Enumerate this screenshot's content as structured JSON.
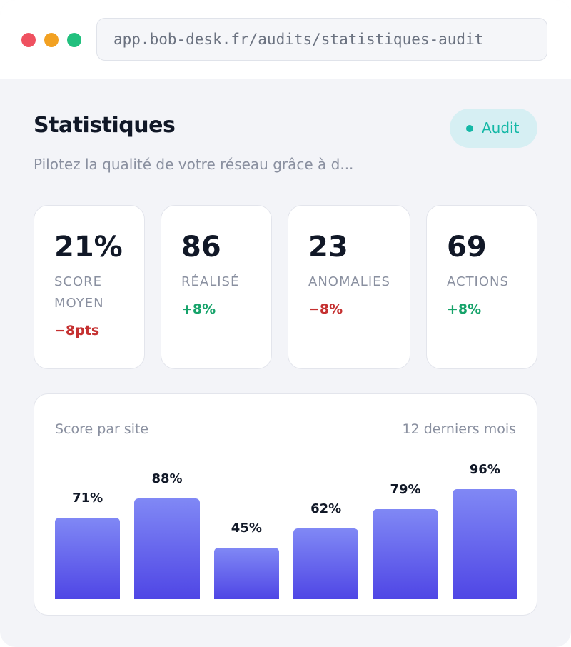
{
  "browser": {
    "url": "app.bob-desk.fr/audits/statistiques-audit"
  },
  "header": {
    "title": "Statistiques",
    "badge": "Audit",
    "subtitle": "Pilotez la qualité de votre réseau grâce à d..."
  },
  "kpis": [
    {
      "value": "21%",
      "label": "SCORE MOYEN",
      "delta": "−8pts",
      "trend": "down"
    },
    {
      "value": "86",
      "label": "RÉALISÉ",
      "delta": "+8%",
      "trend": "up"
    },
    {
      "value": "23",
      "label": "ANOMALIES",
      "delta": "−8%",
      "trend": "down"
    },
    {
      "value": "69",
      "label": "ACTIONS",
      "delta": "+8%",
      "trend": "up"
    }
  ],
  "chart_data": {
    "type": "bar",
    "title": "Score par site",
    "subtitle": "12 derniers mois",
    "values": [
      71,
      88,
      45,
      62,
      79,
      96
    ],
    "value_labels": [
      "71%",
      "88%",
      "45%",
      "62%",
      "79%",
      "96%"
    ],
    "color_top": "#8088f5",
    "color_bottom": "#4f46e5"
  }
}
